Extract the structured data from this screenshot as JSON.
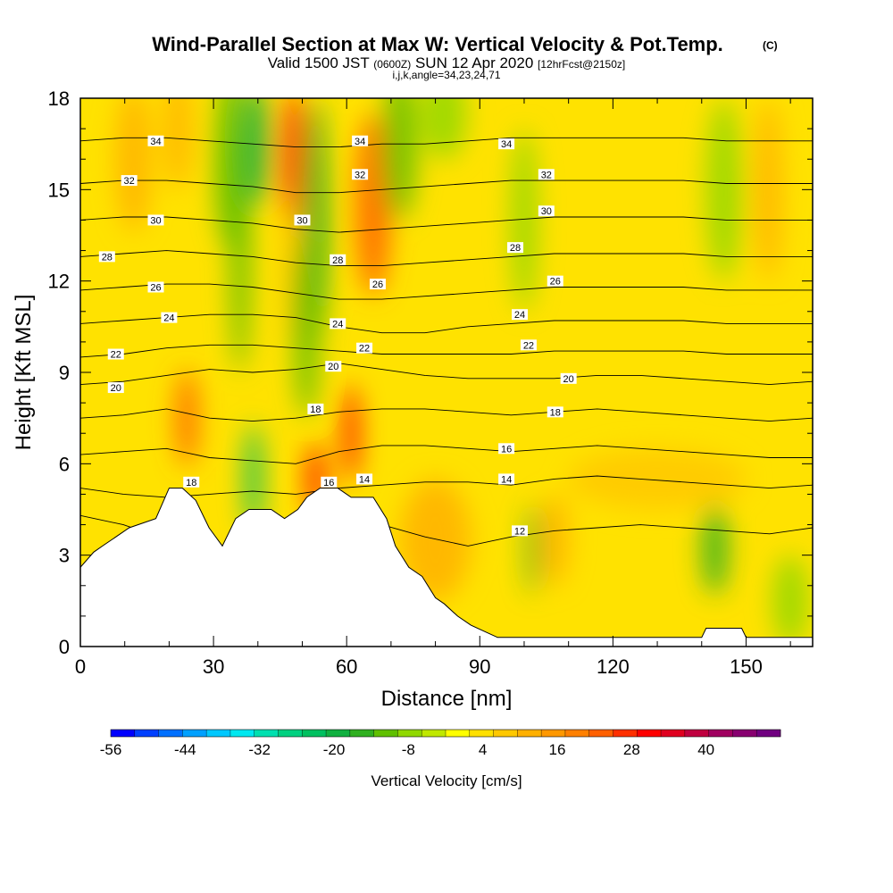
{
  "header": {
    "title": "Wind-Parallel Section at Max W: Vertical Velocity & Pot.Temp.",
    "title_unit": "(C)",
    "subtitle_prefix": "Valid 1500 JST",
    "subtitle_utc": "(0600Z)",
    "subtitle_date": "SUN 12 Apr 2020",
    "subtitle_fcst": "[12hrFcst@2150z]",
    "section_info": "i,j,k,angle=34,23,24,71"
  },
  "chart_data": {
    "type": "heatmap",
    "xlabel": "Distance [nm]",
    "ylabel": "Height [Kft MSL]",
    "xlim": [
      0,
      165
    ],
    "ylim": [
      0,
      18
    ],
    "x_ticks": [
      "0",
      "30",
      "60",
      "90",
      "120",
      "150"
    ],
    "y_ticks": [
      "0",
      "3",
      "6",
      "9",
      "12",
      "15",
      "18"
    ],
    "x_tick_values": [
      0,
      30,
      60,
      90,
      120,
      150
    ],
    "y_tick_values": [
      0,
      3,
      6,
      9,
      12,
      15,
      18
    ],
    "colorbar": {
      "label": "Vertical Velocity [cm/s]",
      "tick_labels": [
        "-56",
        "-44",
        "-32",
        "-20",
        "-8",
        "4",
        "16",
        "28",
        "40"
      ],
      "tick_values": [
        -56,
        -44,
        -32,
        -20,
        -8,
        4,
        16,
        28,
        40
      ],
      "range": [
        -56,
        52
      ],
      "colors": [
        "#0000ff",
        "#0040ff",
        "#0070ff",
        "#00a0ff",
        "#00c8ff",
        "#00e8f0",
        "#00e0b0",
        "#00d080",
        "#00c060",
        "#10b040",
        "#30b020",
        "#60c000",
        "#90d800",
        "#c0e800",
        "#ffff00",
        "#ffe000",
        "#ffc800",
        "#ffb000",
        "#ff9800",
        "#ff8000",
        "#ff6000",
        "#ff3000",
        "#ff0000",
        "#e00020",
        "#c00040",
        "#a00060",
        "#880070",
        "#700080"
      ]
    },
    "isentropes": [
      {
        "theta": 12,
        "heights": [
          4.3,
          4.0,
          3.5,
          3.1,
          2.95,
          3.4,
          3.9,
          4.0,
          3.6,
          3.3,
          3.6,
          3.8,
          3.9,
          4.0,
          3.9,
          3.8,
          3.7,
          3.9
        ]
      },
      {
        "theta": 14,
        "heights": [
          5.2,
          5.0,
          4.9,
          5.0,
          5.1,
          5.0,
          5.2,
          5.3,
          5.4,
          5.4,
          5.3,
          5.5,
          5.6,
          5.5,
          5.4,
          5.3,
          5.2,
          5.3
        ]
      },
      {
        "theta": 16,
        "heights": [
          6.3,
          6.4,
          6.5,
          6.2,
          6.1,
          6.0,
          6.4,
          6.6,
          6.6,
          6.5,
          6.4,
          6.5,
          6.6,
          6.5,
          6.4,
          6.3,
          6.2,
          6.2
        ]
      },
      {
        "theta": 18,
        "heights": [
          7.5,
          7.6,
          7.8,
          7.5,
          7.4,
          7.5,
          7.7,
          7.8,
          7.8,
          7.7,
          7.6,
          7.7,
          7.8,
          7.7,
          7.6,
          7.5,
          7.4,
          7.5
        ]
      },
      {
        "theta": 20,
        "heights": [
          8.6,
          8.7,
          8.9,
          9.1,
          9.0,
          9.1,
          9.3,
          9.1,
          8.9,
          8.8,
          8.8,
          8.8,
          8.9,
          8.9,
          8.8,
          8.7,
          8.6,
          8.7
        ]
      },
      {
        "theta": 22,
        "heights": [
          9.5,
          9.6,
          9.8,
          9.9,
          9.9,
          9.8,
          9.7,
          9.6,
          9.6,
          9.6,
          9.6,
          9.7,
          9.7,
          9.7,
          9.7,
          9.6,
          9.6,
          9.6
        ]
      },
      {
        "theta": 24,
        "heights": [
          10.6,
          10.7,
          10.8,
          10.9,
          10.9,
          10.8,
          10.5,
          10.3,
          10.3,
          10.5,
          10.6,
          10.7,
          10.7,
          10.7,
          10.7,
          10.6,
          10.6,
          10.6
        ]
      },
      {
        "theta": 26,
        "heights": [
          11.7,
          11.8,
          11.9,
          11.9,
          11.8,
          11.6,
          11.4,
          11.4,
          11.5,
          11.6,
          11.7,
          11.8,
          11.8,
          11.8,
          11.8,
          11.7,
          11.7,
          11.7
        ]
      },
      {
        "theta": 28,
        "heights": [
          12.8,
          12.9,
          13.0,
          12.9,
          12.8,
          12.6,
          12.5,
          12.5,
          12.6,
          12.7,
          12.8,
          12.9,
          12.9,
          12.9,
          12.9,
          12.8,
          12.8,
          12.8
        ]
      },
      {
        "theta": 30,
        "heights": [
          14.0,
          14.1,
          14.1,
          14.0,
          13.9,
          13.7,
          13.6,
          13.7,
          13.8,
          13.9,
          14.0,
          14.1,
          14.1,
          14.1,
          14.1,
          14.0,
          14.0,
          14.0
        ]
      },
      {
        "theta": 32,
        "heights": [
          15.2,
          15.3,
          15.3,
          15.2,
          15.1,
          14.9,
          14.9,
          15.0,
          15.1,
          15.2,
          15.3,
          15.3,
          15.3,
          15.3,
          15.3,
          15.2,
          15.2,
          15.2
        ]
      },
      {
        "theta": 34,
        "heights": [
          16.6,
          16.7,
          16.7,
          16.6,
          16.5,
          16.4,
          16.4,
          16.5,
          16.5,
          16.6,
          16.7,
          16.7,
          16.7,
          16.7,
          16.7,
          16.6,
          16.6,
          16.6
        ]
      }
    ],
    "contour_labels": [
      {
        "text": "34",
        "x": 17,
        "y": 16.6
      },
      {
        "text": "32",
        "x": 11,
        "y": 15.3
      },
      {
        "text": "30",
        "x": 17,
        "y": 14.0
      },
      {
        "text": "28",
        "x": 6,
        "y": 12.8
      },
      {
        "text": "26",
        "x": 17,
        "y": 11.8
      },
      {
        "text": "24",
        "x": 20,
        "y": 10.8
      },
      {
        "text": "22",
        "x": 8,
        "y": 9.6
      },
      {
        "text": "20",
        "x": 8,
        "y": 8.5
      },
      {
        "text": "18",
        "x": 25,
        "y": 5.4
      },
      {
        "text": "34",
        "x": 63,
        "y": 16.6
      },
      {
        "text": "32",
        "x": 63,
        "y": 15.5
      },
      {
        "text": "30",
        "x": 50,
        "y": 14.0
      },
      {
        "text": "28",
        "x": 58,
        "y": 12.7
      },
      {
        "text": "26",
        "x": 67,
        "y": 11.9
      },
      {
        "text": "24",
        "x": 58,
        "y": 10.6
      },
      {
        "text": "22",
        "x": 64,
        "y": 9.8
      },
      {
        "text": "20",
        "x": 57,
        "y": 9.2
      },
      {
        "text": "18",
        "x": 53,
        "y": 7.8
      },
      {
        "text": "16",
        "x": 56,
        "y": 5.4
      },
      {
        "text": "14",
        "x": 64,
        "y": 5.5
      },
      {
        "text": "34",
        "x": 96,
        "y": 16.5
      },
      {
        "text": "32",
        "x": 105,
        "y": 15.5
      },
      {
        "text": "30",
        "x": 105,
        "y": 14.3
      },
      {
        "text": "28",
        "x": 98,
        "y": 13.1
      },
      {
        "text": "26",
        "x": 107,
        "y": 12.0
      },
      {
        "text": "24",
        "x": 99,
        "y": 10.9
      },
      {
        "text": "22",
        "x": 101,
        "y": 9.9
      },
      {
        "text": "20",
        "x": 110,
        "y": 8.8
      },
      {
        "text": "18",
        "x": 107,
        "y": 7.7
      },
      {
        "text": "16",
        "x": 96,
        "y": 6.5
      },
      {
        "text": "14",
        "x": 96,
        "y": 5.5
      },
      {
        "text": "12",
        "x": 99,
        "y": 3.8
      }
    ],
    "terrain": [
      [
        0,
        2.6
      ],
      [
        3,
        3.1
      ],
      [
        5,
        3.3
      ],
      [
        8,
        3.6
      ],
      [
        11,
        3.9
      ],
      [
        17,
        4.2
      ],
      [
        20,
        5.2
      ],
      [
        23,
        5.2
      ],
      [
        26,
        4.8
      ],
      [
        29,
        3.9
      ],
      [
        32,
        3.3
      ],
      [
        35,
        4.2
      ],
      [
        38,
        4.5
      ],
      [
        43,
        4.5
      ],
      [
        46,
        4.2
      ],
      [
        49,
        4.5
      ],
      [
        51,
        4.9
      ],
      [
        54,
        5.2
      ],
      [
        58,
        5.2
      ],
      [
        61,
        4.9
      ],
      [
        66,
        4.9
      ],
      [
        69,
        4.2
      ],
      [
        71,
        3.3
      ],
      [
        74,
        2.6
      ],
      [
        77,
        2.3
      ],
      [
        80,
        1.6
      ],
      [
        82,
        1.4
      ],
      [
        85,
        1.0
      ],
      [
        88,
        0.7
      ],
      [
        91,
        0.5
      ],
      [
        94,
        0.3
      ],
      [
        98,
        0.3
      ],
      [
        140,
        0.3
      ],
      [
        141,
        0.6
      ],
      [
        149,
        0.6
      ],
      [
        150,
        0.3
      ],
      [
        165,
        0.3
      ]
    ],
    "w_features": [
      {
        "x": 24,
        "y": 7.5,
        "rx": 2.5,
        "ry": 1.6,
        "w": 22
      },
      {
        "x": 12,
        "y": 16,
        "rx": 4,
        "ry": 2.4,
        "w": 12
      },
      {
        "x": 22,
        "y": 17,
        "rx": 3,
        "ry": 2,
        "w": 10
      },
      {
        "x": 34,
        "y": 16,
        "rx": 4,
        "ry": 3,
        "w": -12
      },
      {
        "x": 36,
        "y": 13,
        "rx": 2.5,
        "ry": 4,
        "w": -10
      },
      {
        "x": 39,
        "y": 5.5,
        "rx": 2,
        "ry": 1.8,
        "w": -22
      },
      {
        "x": 40,
        "y": 16.5,
        "rx": 3,
        "ry": 2,
        "w": -18
      },
      {
        "x": 48,
        "y": 16,
        "rx": 3,
        "ry": 2.3,
        "w": 28
      },
      {
        "x": 48,
        "y": 12.5,
        "rx": 1.5,
        "ry": 2.5,
        "w": 12
      },
      {
        "x": 53,
        "y": 14,
        "rx": 3,
        "ry": 4,
        "w": -16
      },
      {
        "x": 51,
        "y": 10.5,
        "rx": 3,
        "ry": 3,
        "w": -12
      },
      {
        "x": 53,
        "y": 5.5,
        "rx": 2,
        "ry": 1.2,
        "w": 30
      },
      {
        "x": 61,
        "y": 7.0,
        "rx": 1.8,
        "ry": 1.6,
        "w": 32
      },
      {
        "x": 66,
        "y": 14.5,
        "rx": 4,
        "ry": 3,
        "w": 24
      },
      {
        "x": 72,
        "y": 16.5,
        "rx": 4,
        "ry": 2.5,
        "w": -10
      },
      {
        "x": 82,
        "y": 17.5,
        "rx": 5,
        "ry": 1.5,
        "w": -6
      },
      {
        "x": 100,
        "y": 14,
        "rx": 3,
        "ry": 3,
        "w": -6
      },
      {
        "x": 102,
        "y": 3.2,
        "rx": 1.5,
        "ry": 1.5,
        "w": -14
      },
      {
        "x": 107,
        "y": 3.5,
        "rx": 3,
        "ry": 1.5,
        "w": 10
      },
      {
        "x": 80,
        "y": 3.5,
        "rx": 8,
        "ry": 2,
        "w": 10
      },
      {
        "x": 145,
        "y": 15,
        "rx": 4,
        "ry": 3,
        "w": -6
      },
      {
        "x": 155,
        "y": 15,
        "rx": 3,
        "ry": 3,
        "w": 10
      },
      {
        "x": 143,
        "y": 3.2,
        "rx": 3,
        "ry": 1.5,
        "w": -14
      },
      {
        "x": 160,
        "y": 1.5,
        "rx": 4,
        "ry": 1.5,
        "w": -6
      },
      {
        "x": 130,
        "y": 5.5,
        "rx": 20,
        "ry": 1,
        "w": 6
      }
    ]
  }
}
